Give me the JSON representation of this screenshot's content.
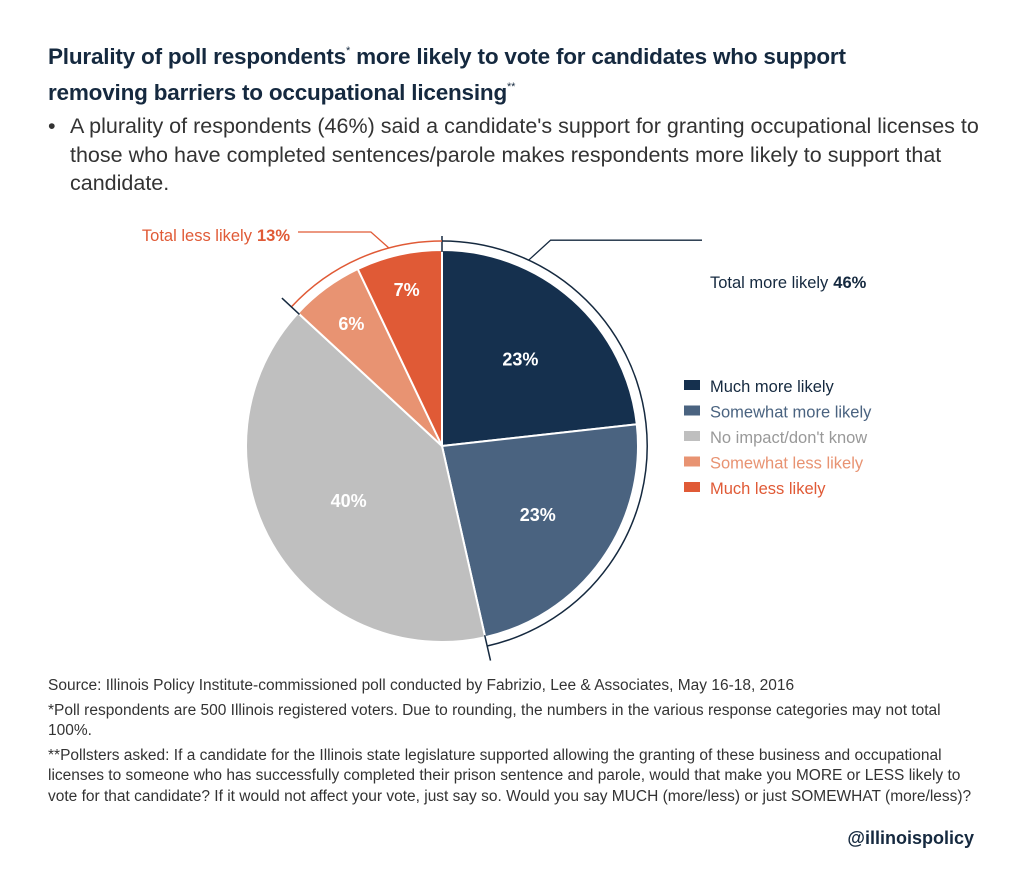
{
  "title": {
    "line1_main": "Plurality of poll respondents",
    "line1_mark": "*",
    "line1_rest": " more likely to vote for candidates who support",
    "line2_main": "removing barriers to occupational licensing",
    "line2_mark": "**"
  },
  "bullet": {
    "symbol": "•",
    "text": "A plurality of respondents (46%) said a candidate's support for granting occupational licenses to those who have completed sentences/parole makes respondents more likely to support that candidate."
  },
  "chart_data": {
    "type": "pie",
    "slices": [
      {
        "label": "Much more likely",
        "value": 23,
        "display": "23%",
        "color": "#15304e"
      },
      {
        "label": "Somewhat more likely",
        "value": 23,
        "display": "23%",
        "color": "#4a6380"
      },
      {
        "label": "No impact/don't know",
        "value": 40,
        "display": "40%",
        "color": "#bfbfbf"
      },
      {
        "label": "Somewhat less likely",
        "value": 6,
        "display": "6%",
        "color": "#e89372"
      },
      {
        "label": "Much less likely",
        "value": 7,
        "display": "7%",
        "color": "#e05a36"
      }
    ],
    "legend_placement": "right",
    "annotations": [
      {
        "label": "Total more likely",
        "value": "46%",
        "color": "#15293f"
      },
      {
        "label": "Total less likely",
        "value": "13%",
        "color": "#e05a36"
      }
    ]
  },
  "footer": {
    "source": "Source: Illinois Policy Institute-commissioned poll conducted by Fabrizio, Lee & Associates, May 16-18, 2016",
    "note1": "*Poll respondents are 500 Illinois registered voters. Due to rounding, the numbers in the various response categories may not total 100%.",
    "note2": "**Pollsters asked: If a candidate for the Illinois state legislature supported allowing the granting of these business and occupational licenses to someone who has successfully completed their prison sentence and parole, would that make you MORE or LESS likely to vote for that candidate? If it would not affect your vote, just say so. Would you say MUCH (more/less) or just SOMEWHAT (more/less)?",
    "handle": "@illinoispolicy"
  }
}
